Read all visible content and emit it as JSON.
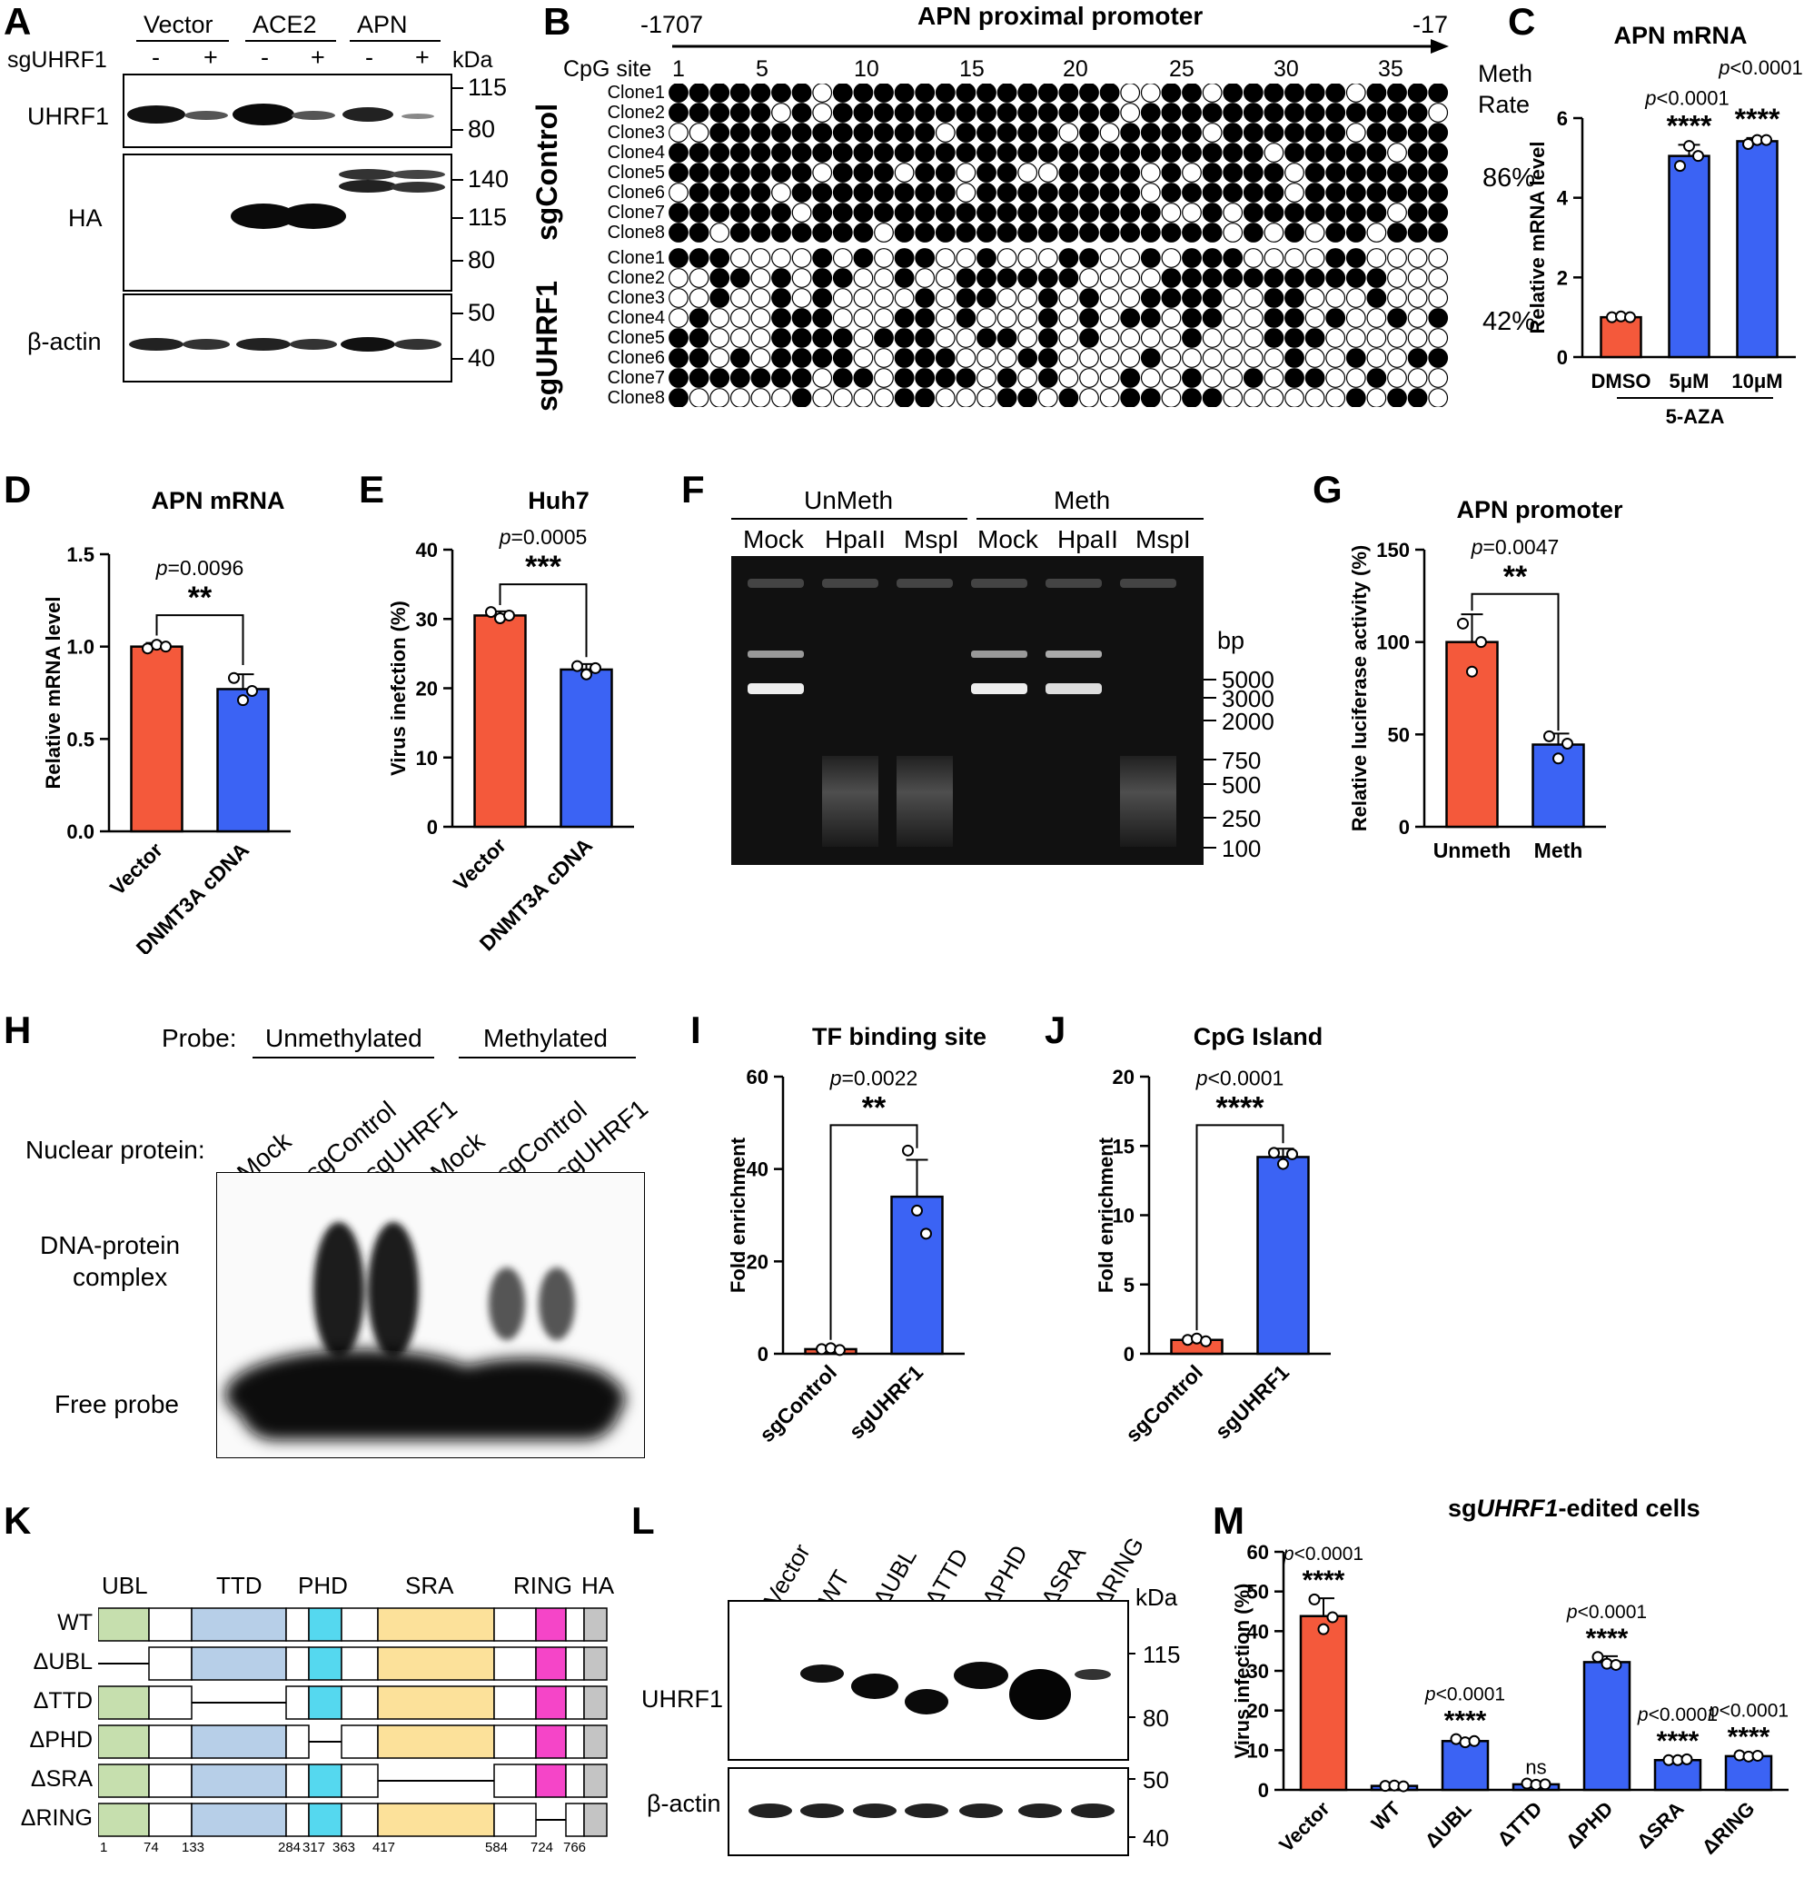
{
  "panelA": {
    "label": "A",
    "groups": [
      "Vector",
      "ACE2",
      "APN"
    ],
    "row_label": "sgUHRF1",
    "minus": "-",
    "plus": "+",
    "kda": "kDa",
    "blots": [
      "UHRF1",
      "HA",
      "β-actin"
    ],
    "markers_uhrf1": [
      "115",
      "80"
    ],
    "markers_ha": [
      "140",
      "115",
      "80"
    ],
    "markers_actin": [
      "50",
      "40"
    ]
  },
  "panelB": {
    "label": "B",
    "start": "-1707",
    "end": "-17",
    "title": "APN proximal promoter",
    "cpg_label": "CpG site",
    "sites": [
      "1",
      "5",
      "10",
      "15",
      "20",
      "25",
      "30",
      "35"
    ],
    "meth_label": [
      "Meth",
      "Rate"
    ],
    "group1": "sgControl",
    "group2": "sgUHRF1",
    "rate1": "86%",
    "rate2": "42%",
    "clones": [
      "Clone1",
      "Clone2",
      "Clone3",
      "Clone4",
      "Clone5",
      "Clone6",
      "Clone7",
      "Clone8"
    ]
  },
  "panelC": {
    "label": "C",
    "chart_data": {
      "type": "bar",
      "title": "APN mRNA",
      "ylabel": "Relative mRNA level",
      "categories": [
        "DMSO",
        "5μM",
        "10μM"
      ],
      "group_label": "5-AZA",
      "values": [
        1.0,
        5.05,
        5.42
      ],
      "errors": [
        0.05,
        0.28,
        0.08
      ],
      "points": [
        [
          1.0,
          1.02,
          1.0
        ],
        [
          4.8,
          5.3,
          5.05
        ],
        [
          5.35,
          5.45,
          5.45
        ]
      ],
      "ylim": [
        0,
        6
      ],
      "yticks": [
        "0",
        "2",
        "4",
        "6"
      ],
      "pvalues": [
        "p<0.0001",
        "p<0.0001"
      ],
      "stars": [
        "****",
        "****"
      ]
    }
  },
  "panelD": {
    "label": "D",
    "chart_data": {
      "type": "bar",
      "title": "APN mRNA",
      "ylabel": "Relative mRNA level",
      "categories": [
        "Vector",
        "DNMT3A cDNA"
      ],
      "values": [
        1.0,
        0.77
      ],
      "errors": [
        0.02,
        0.08
      ],
      "points": [
        [
          0.99,
          1.01,
          1.0
        ],
        [
          0.83,
          0.71,
          0.76
        ]
      ],
      "ylim": [
        0,
        1.5
      ],
      "yticks": [
        "0.0",
        "0.5",
        "1.0",
        "1.5"
      ],
      "pvalue": "p=0.0096",
      "stars": "**"
    }
  },
  "panelE": {
    "label": "E",
    "chart_data": {
      "type": "bar",
      "title": "Huh7",
      "ylabel": "Virus inefction (%)",
      "categories": [
        "Vector",
        "DNMT3A cDNA"
      ],
      "values": [
        30.5,
        22.7
      ],
      "errors": [
        0.6,
        0.8
      ],
      "points": [
        [
          31.0,
          30.1,
          30.5
        ],
        [
          23.2,
          22.0,
          22.9
        ]
      ],
      "ylim": [
        0,
        40
      ],
      "yticks": [
        "0",
        "10",
        "20",
        "30",
        "40"
      ],
      "pvalue": "p=0.0005",
      "stars": "***"
    }
  },
  "panelF": {
    "label": "F",
    "groups": [
      "UnMeth",
      "Meth"
    ],
    "lanes": [
      "Mock",
      "HpaII",
      "MspI",
      "Mock",
      "HpaII",
      "MspI"
    ],
    "bp": "bp",
    "markers": [
      "5000",
      "3000",
      "2000",
      "750",
      "500",
      "250",
      "100"
    ]
  },
  "panelG": {
    "label": "G",
    "chart_data": {
      "type": "bar",
      "title": "APN promoter",
      "ylabel": "Relative luciferase activity (%)",
      "categories": [
        "Unmeth",
        "Meth"
      ],
      "values": [
        100,
        44.5
      ],
      "errors": [
        15,
        6
      ],
      "points": [
        [
          110,
          84,
          100
        ],
        [
          49,
          37,
          45
        ]
      ],
      "ylim": [
        0,
        150
      ],
      "yticks": [
        "0",
        "50",
        "100",
        "150"
      ],
      "pvalue": "p=0.0047",
      "stars": "**"
    }
  },
  "panelH": {
    "label": "H",
    "probe_label": "Probe:",
    "probes": [
      "Unmethylated",
      "Methylated"
    ],
    "nuclear_label": "Nuclear protein:",
    "lanes": [
      "Mock",
      "sgControl",
      "sgUHRF1",
      "Mock",
      "sgControl",
      "sgUHRF1"
    ],
    "complex": [
      "DNA-protein",
      "complex"
    ],
    "free": "Free probe"
  },
  "panelI": {
    "label": "I",
    "chart_data": {
      "type": "bar",
      "title": "TF binding site",
      "ylabel": "Fold enrichment",
      "categories": [
        "sgControl",
        "sgUHRF1"
      ],
      "values": [
        1.0,
        34
      ],
      "errors": [
        0.2,
        8
      ],
      "points": [
        [
          1.0,
          1.2,
          0.8
        ],
        [
          44,
          31,
          26
        ]
      ],
      "ylim": [
        0,
        60
      ],
      "yticks": [
        "0",
        "20",
        "40",
        "60"
      ],
      "pvalue": "p=0.0022",
      "stars": "**"
    }
  },
  "panelJ": {
    "label": "J",
    "chart_data": {
      "type": "bar",
      "title": "CpG Island",
      "ylabel": "Fold enrichment",
      "categories": [
        "sgControl",
        "sgUHRF1"
      ],
      "values": [
        1.0,
        14.2
      ],
      "errors": [
        0.1,
        0.6
      ],
      "points": [
        [
          1.0,
          1.1,
          0.9
        ],
        [
          14.5,
          13.7,
          14.4
        ]
      ],
      "ylim": [
        0,
        20
      ],
      "yticks": [
        "0",
        "5",
        "10",
        "15",
        "20"
      ],
      "pvalue": "p<0.0001",
      "stars": "****"
    }
  },
  "panelK": {
    "label": "K",
    "domains": [
      "UBL",
      "TTD",
      "PHD",
      "SRA",
      "RING",
      "HA"
    ],
    "constructs": [
      "WT",
      "ΔUBL",
      "ΔTTD",
      "ΔPHD",
      "ΔSRA",
      "ΔRING"
    ],
    "positions": [
      "1",
      "74",
      "133",
      "284",
      "317",
      "363",
      "417",
      "584",
      "724",
      "766"
    ]
  },
  "panelL": {
    "label": "L",
    "lanes": [
      "Vector",
      "WT",
      "ΔUBL",
      "ΔTTD",
      "ΔPHD",
      "ΔSRA",
      "ΔRING"
    ],
    "kda": "kDa",
    "blots": [
      "UHRF1",
      "β-actin"
    ],
    "markers_uhrf1": [
      "115",
      "80"
    ],
    "markers_actin": [
      "50",
      "40"
    ]
  },
  "panelM": {
    "label": "M",
    "title_prefix": "sg",
    "title_gene": "UHRF1",
    "title_suffix": "-edited cells",
    "chart_data": {
      "type": "bar",
      "ylabel": "Virus infection (%)",
      "categories": [
        "Vector",
        "WT",
        "ΔUBL",
        "ΔTTD",
        "ΔPHD",
        "ΔSRA",
        "ΔRING"
      ],
      "values": [
        43.8,
        1.0,
        12.3,
        1.4,
        32.2,
        7.5,
        8.5
      ],
      "errors": [
        4.5,
        0.2,
        0.6,
        0.3,
        1.5,
        0.3,
        0.3
      ],
      "points": [
        [
          48,
          40.5,
          43.5
        ],
        [
          1,
          1.1,
          0.9
        ],
        [
          12.8,
          12,
          12.3
        ],
        [
          1.6,
          1.3,
          1.4
        ],
        [
          33.5,
          31.8,
          31.5
        ],
        [
          7.5,
          7.5,
          7.7
        ],
        [
          8.7,
          8.4,
          8.6
        ]
      ],
      "ylim": [
        0,
        60
      ],
      "yticks": [
        "0",
        "10",
        "20",
        "30",
        "40",
        "50",
        "60"
      ],
      "annotations": [
        [
          "p<0.0001",
          "****"
        ],
        [
          "",
          ""
        ],
        [
          "p<0.0001",
          "****"
        ],
        [
          "",
          "ns"
        ],
        [
          "p<0.0001",
          "****"
        ],
        [
          "p<0.0001",
          "****"
        ],
        [
          "p<0.0001",
          "****"
        ]
      ]
    }
  },
  "colors": {
    "red": "#f4593b",
    "blue": "#3b63f4",
    "ubl": "#c6dfae",
    "ttd": "#b7cfe8",
    "phd": "#55d8ef",
    "sra": "#fce19a",
    "ring": "#f545c8",
    "ha": "#c4c4c4"
  }
}
